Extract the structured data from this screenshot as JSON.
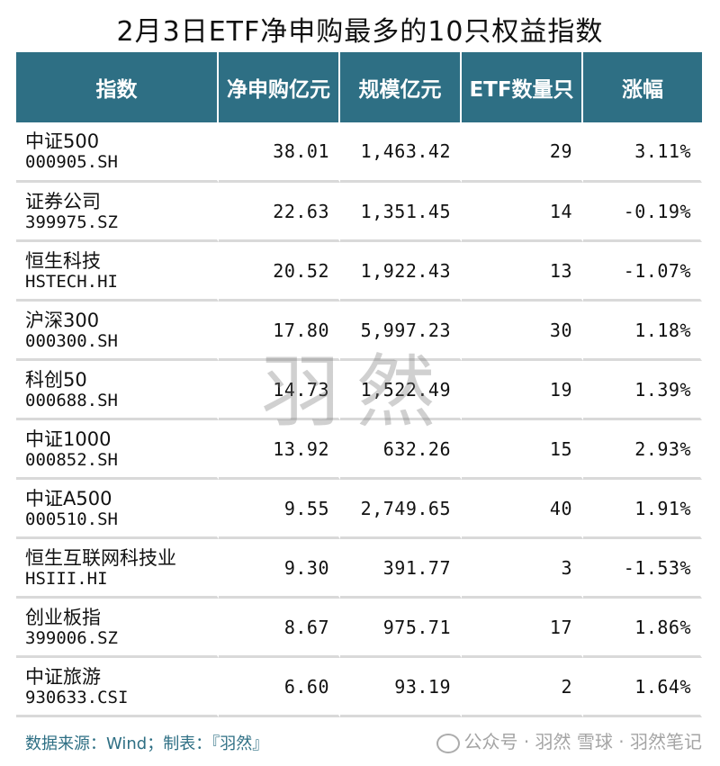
{
  "title": "2月3日ETF净申购最多的10只权益指数",
  "table": {
    "headers": [
      "指数",
      "净申购亿元",
      "规模亿元",
      "ETF数量只",
      "涨幅"
    ],
    "rows": [
      {
        "name": "中证500",
        "code": "000905.SH",
        "net": "38.01",
        "scale": "1,463.42",
        "count": "29",
        "change": "3.11%"
      },
      {
        "name": "证券公司",
        "code": "399975.SZ",
        "net": "22.63",
        "scale": "1,351.45",
        "count": "14",
        "change": "-0.19%"
      },
      {
        "name": "恒生科技",
        "code": "HSTECH.HI",
        "net": "20.52",
        "scale": "1,922.43",
        "count": "13",
        "change": "-1.07%"
      },
      {
        "name": "沪深300",
        "code": "000300.SH",
        "net": "17.80",
        "scale": "5,997.23",
        "count": "30",
        "change": "1.18%"
      },
      {
        "name": "科创50",
        "code": "000688.SH",
        "net": "14.73",
        "scale": "1,522.49",
        "count": "19",
        "change": "1.39%"
      },
      {
        "name": "中证1000",
        "code": "000852.SH",
        "net": "13.92",
        "scale": "632.26",
        "count": "15",
        "change": "2.93%"
      },
      {
        "name": "中证A500",
        "code": "000510.SH",
        "net": "9.55",
        "scale": "2,749.65",
        "count": "40",
        "change": "1.91%"
      },
      {
        "name": "恒生互联网科技业",
        "code": "HSIII.HI",
        "net": "9.30",
        "scale": "391.77",
        "count": "3",
        "change": "-1.53%"
      },
      {
        "name": "创业板指",
        "code": "399006.SZ",
        "net": "8.67",
        "scale": "975.71",
        "count": "17",
        "change": "1.86%"
      },
      {
        "name": "中证旅游",
        "code": "930633.CSI",
        "net": "6.60",
        "scale": "93.19",
        "count": "2",
        "change": "1.64%"
      }
    ]
  },
  "source": "数据来源：Wind；制表：『羽然』",
  "watermark": "羽然",
  "footer_mark": "公众号 · 羽然 雪球 · 羽然笔记",
  "colors": {
    "header_bg": "#2e6f84",
    "header_text": "#ffffff",
    "source_text": "#2e6f84",
    "row_divider": "#d9d9d9"
  },
  "icons": {
    "footer": "wechat-icon"
  }
}
